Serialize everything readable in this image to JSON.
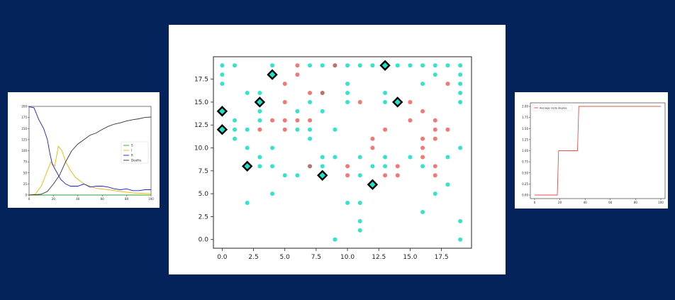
{
  "colors": {
    "background": "#04235a",
    "teal": "#1fe0c8",
    "red": "#ee4b4b",
    "marker_edge": "#000000",
    "line_S": "#2ca02c",
    "line_I": "#f0b400",
    "line_R": "#1a1fd1",
    "line_deaths": "#333333",
    "line_degree": "#e0524a"
  },
  "chart_data": [
    {
      "id": "sir_curves",
      "type": "line",
      "xlim": [
        0,
        100
      ],
      "ylim": [
        0,
        200
      ],
      "x_ticks": [
        "0",
        "20",
        "40",
        "60",
        "80",
        "100"
      ],
      "y_ticks": [
        "0",
        "25",
        "50",
        "75",
        "100",
        "125",
        "150",
        "175",
        "200"
      ],
      "legend_position": "center-right",
      "series": [
        {
          "name": "S",
          "color": "#2ca02c",
          "points": [
            [
              0,
              0
            ],
            [
              100,
              0
            ]
          ]
        },
        {
          "name": "I",
          "color": "#f0b400",
          "points": [
            [
              0,
              0
            ],
            [
              5,
              2
            ],
            [
              10,
              20
            ],
            [
              15,
              55
            ],
            [
              18,
              75
            ],
            [
              21,
              65
            ],
            [
              24,
              110
            ],
            [
              27,
              100
            ],
            [
              30,
              75
            ],
            [
              34,
              55
            ],
            [
              38,
              40
            ],
            [
              45,
              25
            ],
            [
              55,
              15
            ],
            [
              65,
              12
            ],
            [
              75,
              8
            ],
            [
              85,
              5
            ],
            [
              92,
              4
            ],
            [
              100,
              3
            ]
          ]
        },
        {
          "name": "R",
          "color": "#1a1fd1",
          "points": [
            [
              0,
              199
            ],
            [
              4,
              197
            ],
            [
              8,
              170
            ],
            [
              12,
              150
            ],
            [
              15,
              125
            ],
            [
              17,
              95
            ],
            [
              19,
              70
            ],
            [
              22,
              55
            ],
            [
              26,
              35
            ],
            [
              30,
              25
            ],
            [
              34,
              20
            ],
            [
              40,
              20
            ],
            [
              45,
              25
            ],
            [
              50,
              18
            ],
            [
              55,
              20
            ],
            [
              60,
              20
            ],
            [
              65,
              18
            ],
            [
              70,
              14
            ],
            [
              75,
              12
            ],
            [
              80,
              14
            ],
            [
              85,
              10
            ],
            [
              90,
              10
            ],
            [
              95,
              12
            ],
            [
              100,
              12
            ]
          ]
        },
        {
          "name": "Deaths",
          "color": "#333333",
          "points": [
            [
              0,
              0
            ],
            [
              5,
              1
            ],
            [
              10,
              2
            ],
            [
              15,
              8
            ],
            [
              20,
              25
            ],
            [
              25,
              45
            ],
            [
              30,
              75
            ],
            [
              35,
              100
            ],
            [
              40,
              115
            ],
            [
              45,
              125
            ],
            [
              50,
              135
            ],
            [
              55,
              140
            ],
            [
              60,
              148
            ],
            [
              65,
              155
            ],
            [
              70,
              160
            ],
            [
              75,
              163
            ],
            [
              80,
              167
            ],
            [
              85,
              170
            ],
            [
              90,
              172
            ],
            [
              95,
              175
            ],
            [
              100,
              176
            ]
          ]
        }
      ]
    },
    {
      "id": "node_scatter",
      "type": "scatter",
      "xlim": [
        -0.7,
        19.9
      ],
      "ylim": [
        -0.95,
        19.95
      ],
      "x_ticks": [
        0,
        2.5,
        5,
        7.5,
        10,
        12.5,
        15,
        17.5
      ],
      "x_tick_labels": [
        "0.0",
        "2.5",
        "5.0",
        "7.5",
        "10.0",
        "12.5",
        "15.0",
        "17.5"
      ],
      "y_ticks": [
        0,
        2.5,
        5,
        7.5,
        10,
        12.5,
        15,
        17.5
      ],
      "y_tick_labels": [
        "0.0",
        "2.5",
        "5.0",
        "7.5",
        "10.0",
        "12.5",
        "15.0",
        "17.5"
      ],
      "teal_points": [
        [
          0,
          19
        ],
        [
          1,
          19
        ],
        [
          4,
          19
        ],
        [
          7,
          19
        ],
        [
          8,
          19
        ],
        [
          9,
          19
        ],
        [
          10,
          19
        ],
        [
          11,
          19
        ],
        [
          12,
          19
        ],
        [
          14,
          19
        ],
        [
          15,
          19
        ],
        [
          16,
          19
        ],
        [
          17,
          19
        ],
        [
          18,
          19
        ],
        [
          19,
          19
        ],
        [
          0,
          18
        ],
        [
          17,
          18
        ],
        [
          19,
          18
        ],
        [
          0,
          17
        ],
        [
          10,
          17
        ],
        [
          16,
          17
        ],
        [
          19,
          17
        ],
        [
          2,
          16
        ],
        [
          3,
          16
        ],
        [
          8,
          16
        ],
        [
          10,
          16
        ],
        [
          13,
          16
        ],
        [
          19,
          16
        ],
        [
          7,
          15
        ],
        [
          10,
          15
        ],
        [
          13,
          15
        ],
        [
          19,
          15
        ],
        [
          3,
          14
        ],
        [
          6,
          14
        ],
        [
          8,
          14
        ],
        [
          1,
          13
        ],
        [
          3,
          13
        ],
        [
          1,
          12
        ],
        [
          2,
          12
        ],
        [
          6,
          12
        ],
        [
          7,
          12
        ],
        [
          9,
          12
        ],
        [
          1,
          11
        ],
        [
          7,
          11
        ],
        [
          2,
          10
        ],
        [
          4,
          10
        ],
        [
          19,
          10
        ],
        [
          3,
          9
        ],
        [
          8,
          9
        ],
        [
          9,
          9
        ],
        [
          11,
          9
        ],
        [
          13,
          9
        ],
        [
          15,
          9
        ],
        [
          18,
          9
        ],
        [
          3,
          8
        ],
        [
          4,
          8
        ],
        [
          7,
          8
        ],
        [
          8,
          8
        ],
        [
          12,
          8
        ],
        [
          13,
          8
        ],
        [
          16,
          8
        ],
        [
          5,
          7
        ],
        [
          6,
          7
        ],
        [
          11,
          7
        ],
        [
          12,
          6
        ],
        [
          18,
          6
        ],
        [
          4,
          5
        ],
        [
          17,
          5
        ],
        [
          10,
          4
        ],
        [
          2,
          4
        ],
        [
          11,
          4
        ],
        [
          16,
          3
        ],
        [
          11,
          2
        ],
        [
          19,
          2
        ],
        [
          11,
          1
        ],
        [
          9,
          0
        ],
        [
          19,
          0
        ]
      ],
      "red_points": [
        [
          6,
          19
        ],
        [
          9,
          19
        ],
        [
          6,
          18
        ],
        [
          5,
          17
        ],
        [
          18,
          17
        ],
        [
          7,
          16
        ],
        [
          8,
          16
        ],
        [
          5,
          15
        ],
        [
          11,
          15
        ],
        [
          15,
          15
        ],
        [
          16,
          14
        ],
        [
          4,
          13
        ],
        [
          5,
          13
        ],
        [
          6,
          13
        ],
        [
          7,
          13
        ],
        [
          15,
          13
        ],
        [
          17,
          13
        ],
        [
          3,
          12
        ],
        [
          5,
          12
        ],
        [
          13,
          12
        ],
        [
          17,
          12
        ],
        [
          18,
          12
        ],
        [
          12,
          11
        ],
        [
          16,
          11
        ],
        [
          17,
          11
        ],
        [
          12,
          10
        ],
        [
          16,
          10
        ],
        [
          16,
          9
        ],
        [
          7,
          8
        ],
        [
          10,
          8
        ],
        [
          14,
          8
        ],
        [
          17,
          8
        ],
        [
          10,
          7
        ],
        [
          13,
          7
        ],
        [
          14,
          7
        ],
        [
          17,
          7
        ]
      ],
      "mixed_points": [
        [
          7,
          15
        ],
        [
          8,
          9
        ]
      ],
      "highlighted_points": [
        [
          0,
          14
        ],
        [
          0,
          12
        ],
        [
          2,
          8
        ],
        [
          3,
          15
        ],
        [
          4,
          18
        ],
        [
          8,
          7
        ],
        [
          12,
          6
        ],
        [
          13,
          19
        ],
        [
          14,
          15
        ]
      ]
    },
    {
      "id": "avg_degree",
      "type": "line",
      "xlim": [
        0,
        100
      ],
      "ylim": [
        0,
        2
      ],
      "x_ticks": [
        "0",
        "20",
        "40",
        "60",
        "80",
        "100"
      ],
      "y_ticks": [
        "0.00",
        "0.25",
        "0.50",
        "0.75",
        "1.00",
        "1.25",
        "1.50",
        "1.75",
        "2.00"
      ],
      "legend_position": "upper-left",
      "series": [
        {
          "name": "Average node degree",
          "color": "#e0524a",
          "points": [
            [
              0,
              0
            ],
            [
              18,
              0
            ],
            [
              19,
              1
            ],
            [
              34,
              1
            ],
            [
              35,
              2
            ],
            [
              100,
              2
            ]
          ]
        }
      ]
    }
  ]
}
